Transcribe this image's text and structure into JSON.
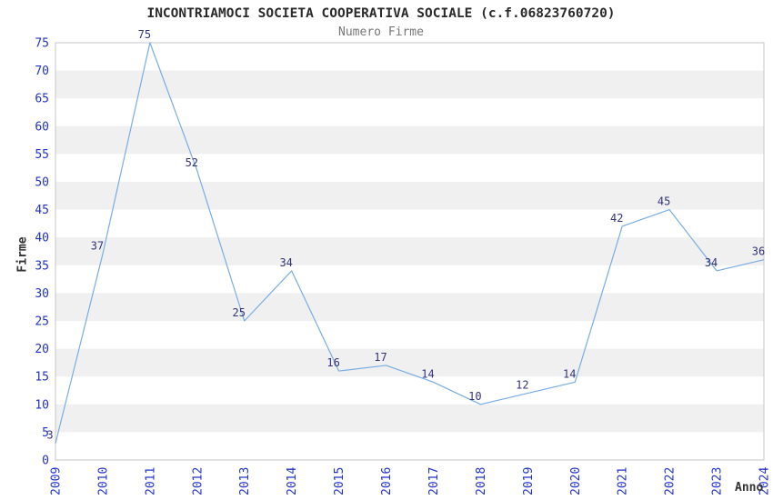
{
  "chart_data": {
    "type": "line",
    "title": "INCONTRIAMOCI SOCIETA COOPERATIVA SOCIALE (c.f.06823760720)",
    "subtitle": "Numero Firme",
    "xlabel": "Anno",
    "ylabel": "Firme",
    "categories": [
      "2009",
      "2010",
      "2011",
      "2012",
      "2013",
      "2014",
      "2015",
      "2016",
      "2017",
      "2018",
      "2019",
      "2020",
      "2021",
      "2022",
      "2023",
      "2024"
    ],
    "values": [
      3,
      37,
      75,
      52,
      25,
      34,
      16,
      17,
      14,
      10,
      12,
      14,
      42,
      45,
      34,
      36
    ],
    "ylim": [
      0,
      75
    ],
    "ytick_step": 5,
    "grid": "alternating-horizontal-bands",
    "legend_position": "none",
    "point_labels_visible": true,
    "colors": {
      "line": "#79ade2",
      "axis_tick_label": "#2233cc",
      "point_label": "#333377",
      "band_fill": "#f0f0f0",
      "plot_border": "#c6c6c6",
      "title_text": "#2a2a2a",
      "subtitle_text": "#777777",
      "axis_title_text": "#333333",
      "background": "#ffffff"
    }
  }
}
